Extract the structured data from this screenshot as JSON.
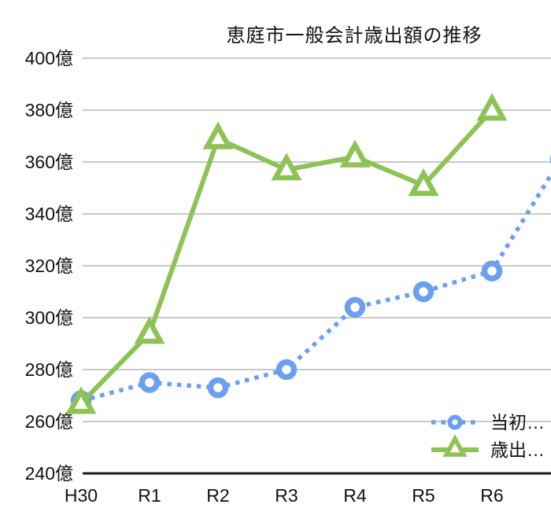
{
  "chart_data": {
    "type": "line",
    "title": "恵庭市一般会計歳出額の推移",
    "categories": [
      "H30",
      "R1",
      "R2",
      "R3",
      "R4",
      "R5",
      "R6"
    ],
    "y_axis": {
      "min": 240,
      "max": 400,
      "step": 20,
      "unit": "億",
      "tick_labels": [
        "240億",
        "260億",
        "280億",
        "300億",
        "320億",
        "340億",
        "360億",
        "380億",
        "400億"
      ]
    },
    "series": [
      {
        "name": "当初…",
        "color": "#6D9FF1",
        "marker": "circle",
        "line_style": "dotted",
        "values": [
          268,
          275,
          273,
          280,
          304,
          310,
          318
        ],
        "offscreen_next_point": {
          "value": 361,
          "note": "8th data point clipped at right image edge; its x label is not visible"
        }
      },
      {
        "name": "歳出…",
        "color": "#8DC255",
        "marker": "triangle",
        "line_style": "solid",
        "values": [
          267,
          294,
          369,
          357,
          362,
          351,
          380
        ]
      }
    ],
    "grid": "horizontal",
    "legend_position": "bottom-right"
  },
  "colors": {
    "grid": "#C8C8C8",
    "axis": "#1A1A1A",
    "text": "#111111",
    "background": "#FFFFFF",
    "series_initial": "#6D9FF1",
    "series_expenditure": "#8DC255"
  }
}
